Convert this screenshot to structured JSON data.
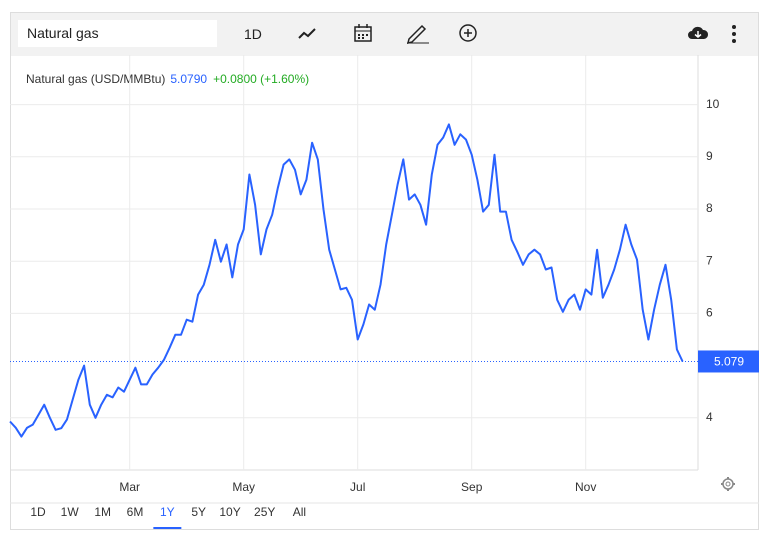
{
  "toolbar": {
    "search": "Natural gas",
    "interval": "1D"
  },
  "ranges": [
    "1D",
    "1W",
    "1M",
    "6M",
    "1Y",
    "5Y",
    "10Y",
    "25Y",
    "All"
  ],
  "selected_range": 4,
  "chart_data": {
    "type": "line",
    "title": "Natural gas (USD/MMBtu)",
    "last_price": "5.0790",
    "change": "+0.0800 (+1.60%)",
    "price_tag": "5.079",
    "color": "#2962ff",
    "categories": [
      null,
      null,
      null,
      null,
      null,
      null,
      null,
      null,
      null,
      null,
      null,
      null,
      null,
      null,
      null,
      null,
      null,
      null,
      null,
      null,
      null,
      "Mar",
      null,
      null,
      null,
      null,
      null,
      null,
      null,
      null,
      null,
      null,
      null,
      null,
      null,
      null,
      null,
      null,
      null,
      null,
      null,
      "May",
      null,
      null,
      null,
      null,
      null,
      null,
      null,
      null,
      null,
      null,
      null,
      null,
      null,
      null,
      null,
      null,
      null,
      null,
      null,
      "Jul",
      null,
      null,
      null,
      null,
      null,
      null,
      null,
      null,
      null,
      null,
      null,
      null,
      null,
      null,
      null,
      null,
      null,
      null,
      null,
      "Sep",
      null,
      null,
      null,
      null,
      null,
      null,
      null,
      null,
      null,
      null,
      null,
      null,
      null,
      null,
      null,
      null,
      null,
      null,
      null,
      "Nov",
      null,
      null,
      null,
      null,
      null,
      null,
      null,
      null,
      null,
      null,
      null,
      null,
      null,
      null,
      null,
      null,
      null
    ],
    "values": [
      3.93,
      3.81,
      3.64,
      3.81,
      3.87,
      4.06,
      4.25,
      4.0,
      3.77,
      3.8,
      3.97,
      4.35,
      4.73,
      5.0,
      4.25,
      4.0,
      4.25,
      4.44,
      4.39,
      4.58,
      4.5,
      4.73,
      4.96,
      4.64,
      4.64,
      4.83,
      4.96,
      5.11,
      5.34,
      5.59,
      5.59,
      5.88,
      5.84,
      6.36,
      6.55,
      6.93,
      7.41,
      6.99,
      7.32,
      6.69,
      7.32,
      7.61,
      8.66,
      8.08,
      7.13,
      7.61,
      7.89,
      8.41,
      8.85,
      8.95,
      8.75,
      8.28,
      8.56,
      9.27,
      8.95,
      7.99,
      7.22,
      6.84,
      6.46,
      6.49,
      6.26,
      5.5,
      5.79,
      6.17,
      6.07,
      6.55,
      7.32,
      7.89,
      8.47,
      8.95,
      8.18,
      8.28,
      8.08,
      7.7,
      8.66,
      9.23,
      9.37,
      9.62,
      9.23,
      9.43,
      9.33,
      9.04,
      8.56,
      7.95,
      8.08,
      9.04,
      7.95,
      7.95,
      7.41,
      7.18,
      6.93,
      7.13,
      7.22,
      7.13,
      6.84,
      6.88,
      6.26,
      6.03,
      6.26,
      6.36,
      6.07,
      6.46,
      6.36,
      7.22,
      6.3,
      6.55,
      6.84,
      7.22,
      7.7,
      7.32,
      7.03,
      6.07,
      5.5,
      6.07,
      6.55,
      6.93,
      6.26,
      5.31,
      5.079
    ],
    "ylim": [
      3,
      10.95
    ],
    "yticks": [
      4,
      6,
      7,
      8,
      9,
      10
    ],
    "grid": true
  }
}
